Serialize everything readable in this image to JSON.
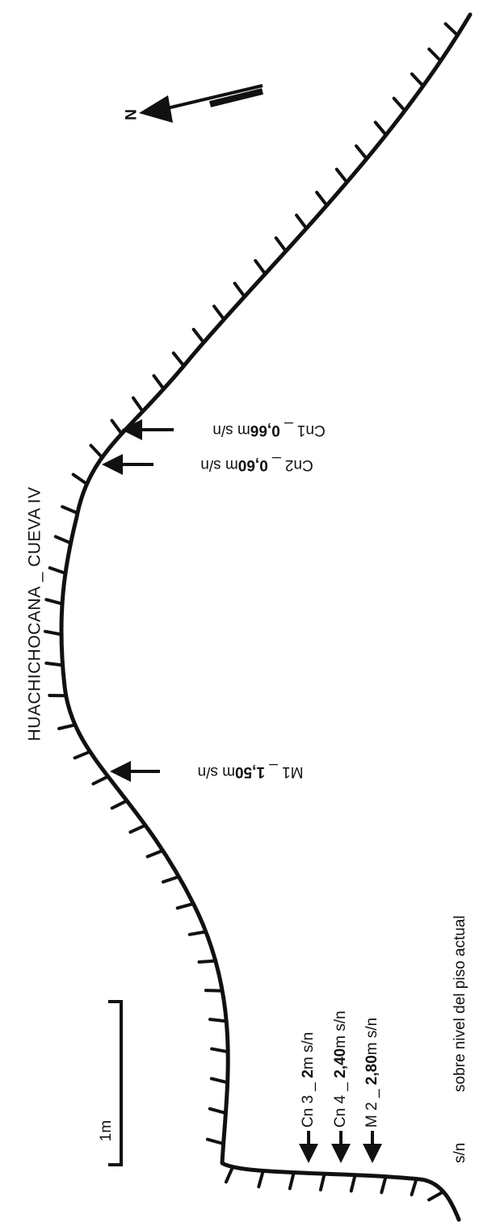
{
  "title": "HUACHICHOCANA _ CUEVA IV",
  "north_label": "N",
  "scale_bar_label": "1m",
  "legend": {
    "abbr": "s/n",
    "text": "sobre nivel del piso actual"
  },
  "samples": [
    {
      "prefix": "Cn1",
      "dash": " _ ",
      "value": "0,66",
      "unit": "m s/n"
    },
    {
      "prefix": "Cn2",
      "dash": " _ ",
      "value": "0,60",
      "unit": "m s/n"
    },
    {
      "prefix": "M1",
      "dash": " _ ",
      "value": "1,50",
      "unit": "m s/n"
    },
    {
      "prefix": "Cn 3",
      "dash": " _ ",
      "value": "2",
      "unit": "m s/n"
    },
    {
      "prefix": "Cn 4",
      "dash": " _ ",
      "value": "2,40",
      "unit": "m s/n"
    },
    {
      "prefix": "M 2",
      "dash": " _ ",
      "value": "2,80",
      "unit": "m s/n"
    }
  ],
  "colors": {
    "ink": "#111111",
    "background": "#ffffff"
  }
}
